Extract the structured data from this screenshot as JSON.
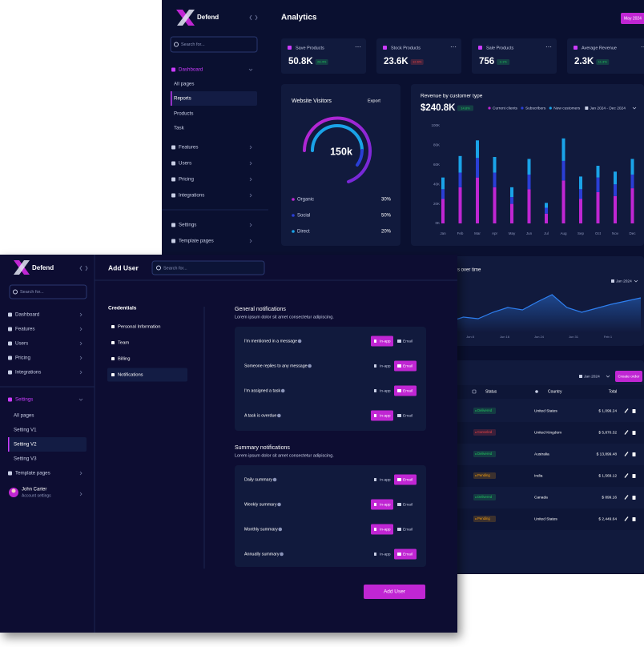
{
  "back": {
    "sidebar": {
      "brand": "Defend",
      "search": "Search for...",
      "active_index": 0,
      "selected_index": 2,
      "items": [
        {
          "label": "Dashboard",
          "sub": false
        },
        {
          "label": "All pages",
          "sub": true
        },
        {
          "label": "Reports",
          "sub": true
        },
        {
          "label": "Products",
          "sub": true
        },
        {
          "label": "Task",
          "sub": true
        },
        {
          "label": "Features",
          "sub": false
        },
        {
          "label": "Users",
          "sub": false
        },
        {
          "label": "Pricing",
          "sub": false
        },
        {
          "label": "Integrations",
          "sub": false
        },
        {
          "label": "Settings",
          "sub": false
        },
        {
          "label": "Template pages",
          "sub": false
        }
      ]
    },
    "title": "Analytics",
    "period_button": "May 2024",
    "stats": [
      {
        "label": "Save Products",
        "value": "50.8K",
        "change": "28.4%",
        "change_color": "#22c55e"
      },
      {
        "label": "Stock Products",
        "value": "23.6K",
        "change": "12.6%",
        "change_color": "#ef4444"
      },
      {
        "label": "Sale Products",
        "value": "756",
        "change": "3.1%",
        "change_color": "#22c55e"
      },
      {
        "label": "Average Revenue",
        "value": "2.3K",
        "change": "11.3%",
        "change_color": "#22c55e"
      }
    ],
    "visitors": {
      "title": "Website Visitors",
      "action": "Export",
      "total": "150k",
      "legend": [
        {
          "label": "Organic",
          "value": "30%",
          "color": "#c026d3"
        },
        {
          "label": "Social",
          "value": "50%",
          "color": "#2a3fd6"
        },
        {
          "label": "Direct",
          "value": "20%",
          "color": "#1aa3e8"
        }
      ]
    },
    "revenue": {
      "title": "Revenue by customer type",
      "total": "$240.8K",
      "change": "14.8%",
      "period": "Jan 2024 - Dec 2024",
      "chart": {
        "type": "bar",
        "stacked": true,
        "categories": [
          "Jan",
          "Feb",
          "Mar",
          "Apr",
          "May",
          "Jun",
          "Jul",
          "Aug",
          "Sep",
          "Oct",
          "Nov",
          "Dec"
        ],
        "series": [
          {
            "name": "Current clients",
            "color": "#c026d3",
            "values": [
              25,
              37,
              47,
              37,
              20,
              35,
              10,
              44,
              25,
              32,
              28,
              36
            ]
          },
          {
            "name": "Subscribers",
            "color": "#2a3fd6",
            "values": [
              10,
              15,
              20,
              15,
              7,
              15,
              6,
              20,
              10,
              15,
              12,
              14
            ]
          },
          {
            "name": "New customers",
            "color": "#1aa3e8",
            "values": [
              12,
              17,
              18,
              16,
              10,
              16,
              5,
              23,
              13,
              12,
              13,
              16
            ]
          }
        ],
        "ylim": [
          0,
          100
        ],
        "yticks": [
          {
            "value": 0,
            "label": "0K"
          },
          {
            "value": 20,
            "label": "20K"
          },
          {
            "value": 40,
            "label": "40K"
          },
          {
            "value": 60,
            "label": "60K"
          },
          {
            "value": 80,
            "label": "80K"
          },
          {
            "value": 100,
            "label": "100K"
          }
        ]
      }
    },
    "trend": {
      "title": "s over time",
      "period": "Jan 2024",
      "chart": {
        "type": "line",
        "color": "#2e7ff0",
        "values": [
          20,
          32,
          28,
          44,
          56,
          50,
          70,
          88,
          56,
          44,
          54,
          64,
          72,
          80
        ],
        "ylim": [
          0,
          100
        ],
        "xticks": [
          "Jun 8",
          "Jun 16",
          "Jun 24",
          "Jun 31",
          "Feb 1"
        ]
      }
    },
    "orders": {
      "period": "Jan 2024",
      "action": "Create order",
      "columns": [
        "Status",
        "Country",
        "Total"
      ],
      "rows": [
        {
          "status": "Delivered",
          "status_color": "#22c55e",
          "country": "United States",
          "total": "$ 1,099.24"
        },
        {
          "status": "Canceled",
          "status_color": "#ef4444",
          "country": "United Kingdom",
          "total": "$ 5,870.32"
        },
        {
          "status": "Delivered",
          "status_color": "#22c55e",
          "country": "Australia",
          "total": "$ 13,899.48"
        },
        {
          "status": "Pending",
          "status_color": "#f59e0b",
          "country": "India",
          "total": "$ 1,569.12"
        },
        {
          "status": "Delivered",
          "status_color": "#22c55e",
          "country": "Canada",
          "total": "$ 899.16"
        },
        {
          "status": "Pending",
          "status_color": "#f59e0b",
          "country": "United States",
          "total": "$ 2,449.64"
        }
      ]
    }
  },
  "front": {
    "sidebar": {
      "brand": "Defend",
      "search": "Search for...",
      "active_index": 5,
      "selected_index": 8,
      "items": [
        {
          "label": "Dashboard",
          "sub": false
        },
        {
          "label": "Features",
          "sub": false
        },
        {
          "label": "Users",
          "sub": false
        },
        {
          "label": "Pricing",
          "sub": false
        },
        {
          "label": "Integrations",
          "sub": false
        },
        {
          "label": "Settings",
          "sub": false
        },
        {
          "label": "All pages",
          "sub": true
        },
        {
          "label": "Setting V1",
          "sub": true
        },
        {
          "label": "Setting V2",
          "sub": true
        },
        {
          "label": "Setting V3",
          "sub": true
        },
        {
          "label": "Template pages",
          "sub": false
        }
      ],
      "user": {
        "name": "John Carter",
        "role": "Account settings"
      }
    },
    "header": {
      "title": "Add User",
      "search": "Search for..."
    },
    "credentials": {
      "title": "Credentials",
      "selected_index": 3,
      "items": [
        "Personal Information",
        "Team",
        "Billing",
        "Notifications"
      ]
    },
    "sections": [
      {
        "title": "General notifications",
        "subtitle": "Lorem ipsum dolor sit amet consectetur adipiscing.",
        "rows": [
          {
            "label": "I'm mentioned in a message",
            "in_app": "In-app",
            "email": "Email",
            "active": "in_app"
          },
          {
            "label": "Someone replies to any message",
            "in_app": "In-app",
            "email": "Email",
            "active": "email"
          },
          {
            "label": "I'm assigned a task",
            "in_app": "In-app",
            "email": "Email",
            "active": "email"
          },
          {
            "label": "A task is overdue",
            "in_app": "In-app",
            "email": "Email",
            "active": "in_app"
          }
        ]
      },
      {
        "title": "Summary notifications",
        "subtitle": "Lorem ipsum dolor sit amet consectetur adipiscing.",
        "rows": [
          {
            "label": "Daily summary",
            "in_app": "In-app",
            "email": "Email",
            "active": "email"
          },
          {
            "label": "Weekly summary",
            "in_app": "In-app",
            "email": "Email",
            "active": "in_app"
          },
          {
            "label": "Monthly summary",
            "in_app": "In-app",
            "email": "Email",
            "active": "in_app"
          },
          {
            "label": "Annually summary",
            "in_app": "In-app",
            "email": "Email",
            "active": "email"
          }
        ]
      }
    ],
    "submit": "Add User"
  }
}
